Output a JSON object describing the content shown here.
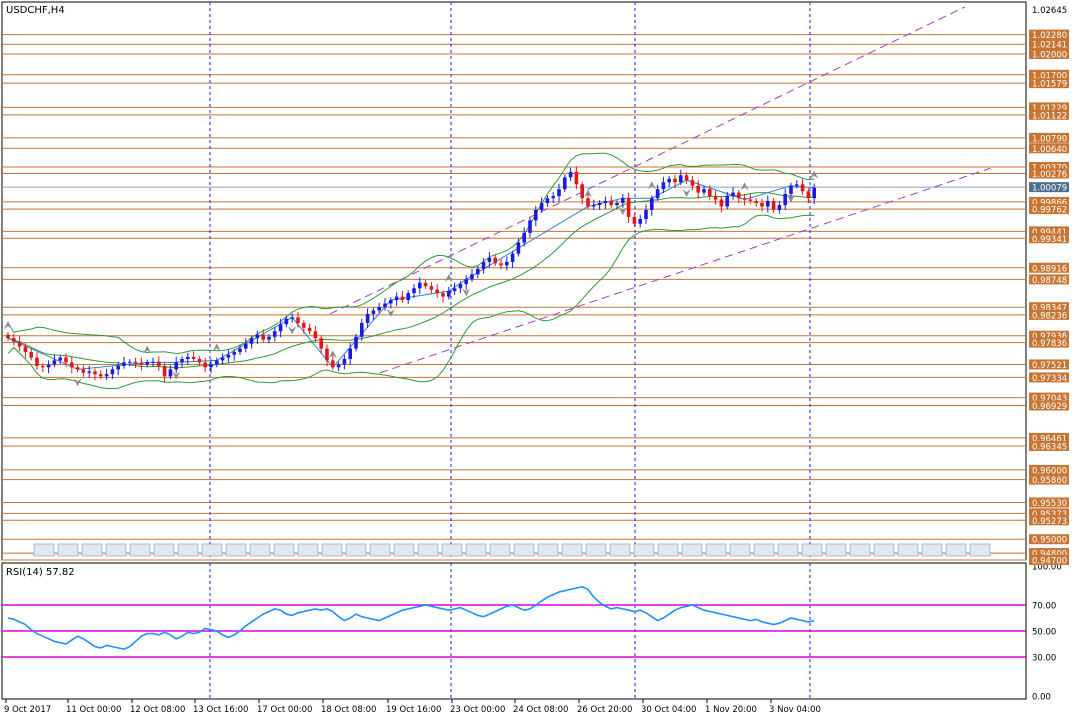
{
  "window": {
    "symbol_label": "USDCHF,H4"
  },
  "colors": {
    "bull": "#1a1ae6",
    "bear": "#e01818",
    "level_line": "#c87533",
    "level_tag_bg": "#c87533",
    "current_price_line": "#8aa0b8",
    "current_price_tag_bg": "#4f6f8f",
    "bands": "#2f9a3a",
    "channel": "#a040c0",
    "vgrid": "#1e1ee0",
    "rsi_line": "#1e90ff",
    "rsi_levels": "#e000e0",
    "zigzag": "#2e7fd0",
    "fractal": "#8c8c8c"
  },
  "chart_data": [
    {
      "type": "candlestick",
      "symbol": "USDCHF",
      "timeframe": "H4",
      "ylim": [
        0.947,
        1.0275
      ],
      "y_ticks": [
        "1.02645",
        "1.02280",
        "1.02141",
        "1.02000",
        "1.01700",
        "1.01579",
        "1.01229",
        "1.01122",
        "1.00790",
        "1.00640",
        "1.00370",
        "1.00276",
        "0.99866",
        "0.99762",
        "0.99441",
        "0.99341",
        "0.98916",
        "0.98748",
        "0.98347",
        "0.98236",
        "0.97936",
        "0.97836",
        "0.97521",
        "0.97334",
        "0.97043",
        "0.96929",
        "0.96461",
        "0.96345",
        "0.96000",
        "0.95860",
        "0.95530",
        "0.95373",
        "0.95273",
        "0.95000",
        "0.94800",
        "0.94700"
      ],
      "price_levels": [
        1.0228,
        1.02141,
        1.02,
        1.017,
        1.01579,
        1.01229,
        1.01122,
        1.0079,
        1.0064,
        1.0037,
        1.00276,
        0.99866,
        0.99762,
        0.99441,
        0.99341,
        0.98916,
        0.98748,
        0.98347,
        0.98236,
        0.97936,
        0.97836,
        0.97521,
        0.97334,
        0.97043,
        0.96929,
        0.96461,
        0.96345,
        0.96,
        0.9586,
        0.9553,
        0.95373,
        0.95273,
        0.95,
        0.948,
        0.947
      ],
      "current_price": 1.00079,
      "current_price_label": "1.00079",
      "x_labels": [
        "9 Oct 2017",
        "11 Oct 00:00",
        "12 Oct 08:00",
        "13 Oct 16:00",
        "17 Oct 00:00",
        "18 Oct 08:00",
        "19 Oct 16:00",
        "23 Oct 00:00",
        "24 Oct 08:00",
        "26 Oct 20:00",
        "30 Oct 04:00",
        "1 Nov 20:00",
        "3 Nov 04:00"
      ],
      "session_separators": [
        "13 Oct 16:00",
        "23 Oct 00:00",
        "27 Oct",
        "3 Nov"
      ],
      "closes": [
        0.979,
        0.9785,
        0.9778,
        0.977,
        0.9762,
        0.975,
        0.9748,
        0.9752,
        0.9758,
        0.9762,
        0.9755,
        0.9748,
        0.9745,
        0.974,
        0.9742,
        0.9738,
        0.9735,
        0.9738,
        0.9745,
        0.975,
        0.9755,
        0.9756,
        0.9754,
        0.9752,
        0.9755,
        0.9756,
        0.975,
        0.9735,
        0.9745,
        0.9755,
        0.976,
        0.9763,
        0.976,
        0.9755,
        0.9748,
        0.9752,
        0.9758,
        0.9762,
        0.9766,
        0.977,
        0.9775,
        0.9782,
        0.979,
        0.9795,
        0.9788,
        0.9792,
        0.98,
        0.981,
        0.9818,
        0.982,
        0.9812,
        0.9805,
        0.98,
        0.979,
        0.9775,
        0.9758,
        0.9748,
        0.9752,
        0.976,
        0.9775,
        0.9792,
        0.9812,
        0.9825,
        0.983,
        0.9835,
        0.984,
        0.9845,
        0.985,
        0.9845,
        0.9855,
        0.9862,
        0.987,
        0.9865,
        0.986,
        0.9855,
        0.985,
        0.9858,
        0.9862,
        0.9868,
        0.9875,
        0.9882,
        0.989,
        0.99,
        0.9906,
        0.9898,
        0.9895,
        0.99,
        0.9912,
        0.9928,
        0.9942,
        0.996,
        0.9975,
        0.9985,
        0.9992,
        0.9995,
        1.0005,
        1.0022,
        1.003,
        1.0012,
        0.9992,
        0.998,
        0.9982,
        0.9985,
        0.9988,
        0.9982,
        0.9985,
        0.9992,
        0.9965,
        0.9955,
        0.9962,
        0.9975,
        0.9992,
        1.0005,
        1.0015,
        1.002,
        1.0015,
        1.0025,
        1.0018,
        1.001,
        1.0,
        1.0005,
        0.9995,
        0.999,
        0.998,
        0.9995,
        1.0,
        0.9992,
        0.999,
        0.9988,
        0.9985,
        0.998,
        0.9988,
        0.9975,
        0.9982,
        0.9998,
        1.001,
        1.0012,
        1.0002,
        0.9992,
        1.0007
      ],
      "rsi": {
        "label": "RSI(14) 57.82",
        "period": 14,
        "last": 57.82,
        "levels": [
          70,
          50,
          30
        ],
        "ylim": [
          0,
          100
        ],
        "y_ticks": [
          "100.00",
          "70.00",
          "50.00",
          "30.00",
          "0.00"
        ],
        "values": [
          60,
          59,
          57,
          55,
          51,
          48,
          46,
          44,
          42,
          41,
          40,
          43,
          46,
          44,
          41,
          38,
          37,
          39,
          38,
          37,
          36,
          38,
          42,
          46,
          48,
          48,
          47,
          49,
          47,
          44,
          46,
          49,
          48,
          49,
          52,
          51,
          50,
          47,
          45,
          47,
          50,
          54,
          57,
          60,
          63,
          65,
          67,
          66,
          63,
          62,
          64,
          65,
          66,
          67,
          66,
          67,
          65,
          61,
          58,
          60,
          63,
          61,
          60,
          59,
          58,
          60,
          62,
          64,
          66,
          67,
          68,
          69,
          70,
          69,
          68,
          67,
          66,
          67,
          68,
          66,
          64,
          62,
          61,
          63,
          65,
          67,
          69,
          70,
          68,
          66,
          67,
          70,
          73,
          76,
          78,
          80,
          81,
          82,
          83,
          84,
          82,
          76,
          72,
          69,
          67,
          68,
          67,
          66,
          65,
          66,
          64,
          61,
          58,
          60,
          63,
          66,
          68,
          69,
          70,
          68,
          66,
          65,
          64,
          63,
          62,
          61,
          60,
          59,
          58,
          59,
          57,
          56,
          55,
          56,
          58,
          60,
          59,
          58,
          57,
          58
        ]
      }
    }
  ]
}
